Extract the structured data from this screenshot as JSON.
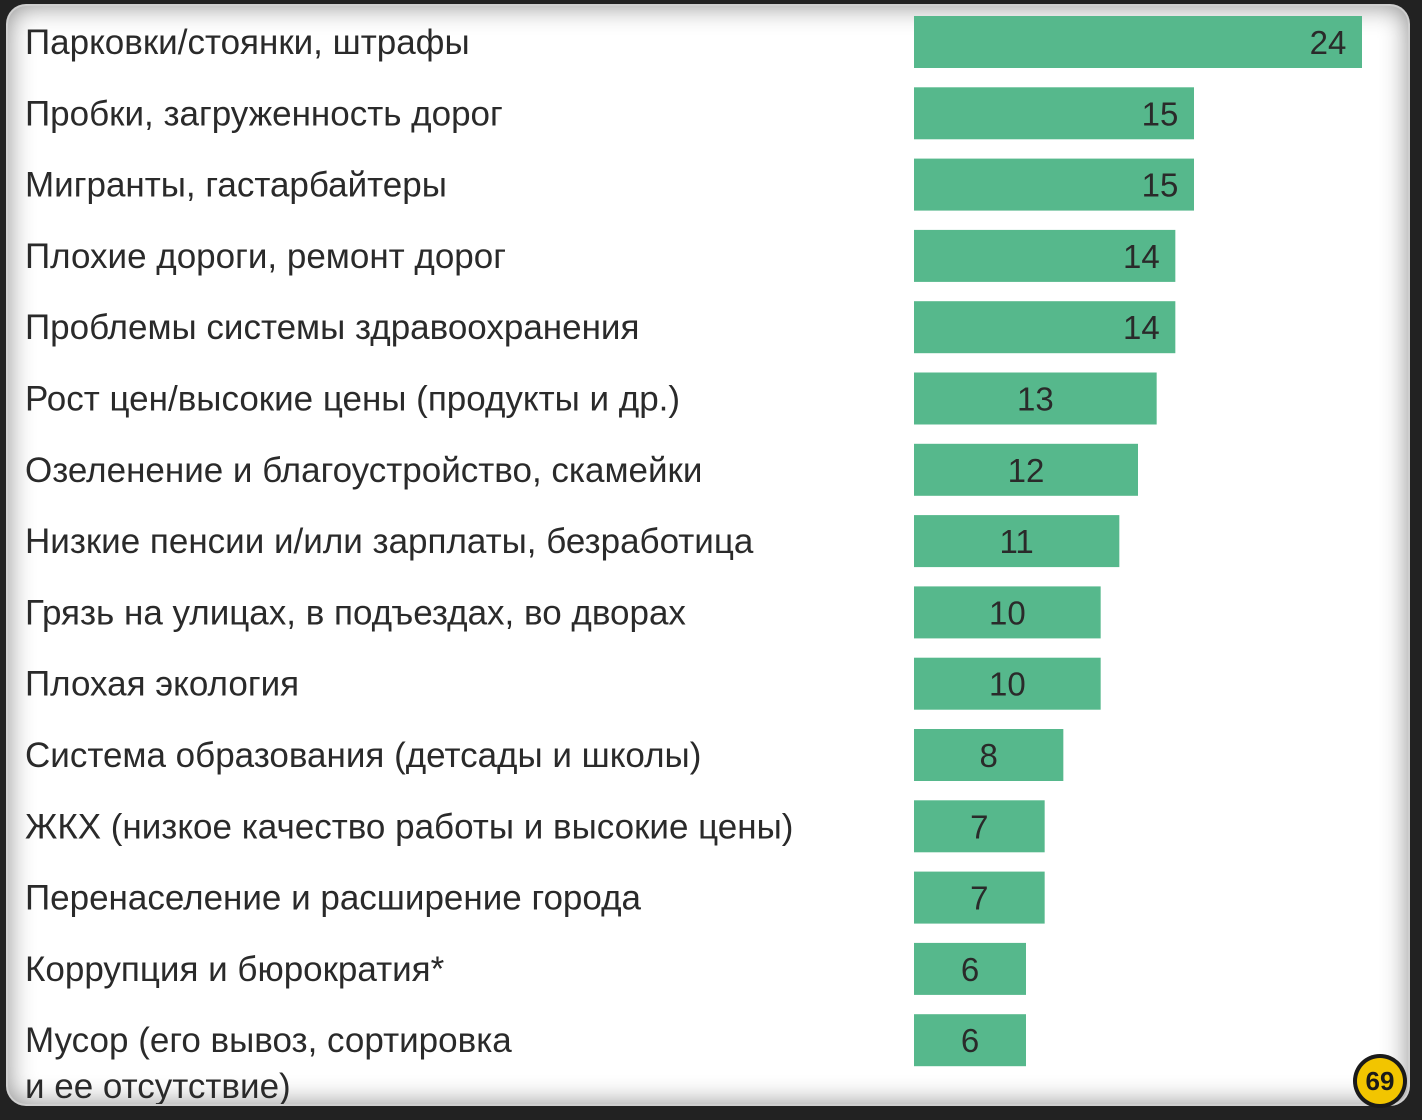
{
  "chart_data": {
    "type": "bar",
    "orientation": "horizontal",
    "categories": [
      "Парковки/стоянки, штрафы",
      "Пробки, загруженность дорог",
      "Мигранты, гастарбайтеры",
      "Плохие дороги, ремонт дорог",
      "Проблемы системы здравоохранения",
      "Рост цен/высокие цены (продукты и др.)",
      "Озеленение и благоустройство, скамейки",
      "Низкие пенсии и/или зарплаты, безработица",
      "Грязь на улицах, в подъездах, во дворах",
      "Плохая экология",
      "Система образования (детсады и школы)",
      "ЖКХ (низкое качество работы и высокие цены)",
      "Перенаселение и расширение города",
      "Коррупция и бюрократия*",
      [
        "Мусор (его вывоз, сортировка",
        "и ее отсутствие)"
      ]
    ],
    "values": [
      24,
      15,
      15,
      14,
      14,
      13,
      12,
      11,
      10,
      10,
      8,
      7,
      7,
      6,
      6
    ],
    "xlim": [
      0,
      24
    ],
    "bar_color": "#56b88c",
    "grid": false,
    "legend": "none"
  },
  "logo": {
    "icon": "logo-69-badge-icon",
    "text": "69",
    "colors": {
      "fill": "#f2c500",
      "ring": "#1a1a1a"
    }
  }
}
